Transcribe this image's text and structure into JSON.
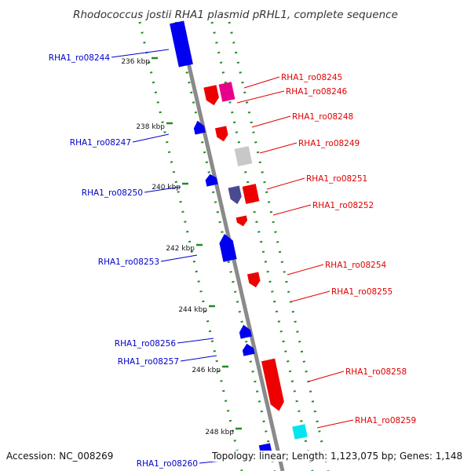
{
  "title": "Rhodococcus jostii RHA1 plasmid pRHL1, complete sequence",
  "accession": "Accession: NC_008269",
  "info": "Topology: linear; Length: 1,123,075 bp; Genes: 1,148",
  "ticks": [
    {
      "label": "236 kbp",
      "kbp": 236
    },
    {
      "label": "238 kbp",
      "kbp": 238
    },
    {
      "label": "240 kbp",
      "kbp": 240
    },
    {
      "label": "242 kbp",
      "kbp": 242
    },
    {
      "label": "244 kbp",
      "kbp": 244
    },
    {
      "label": "246 kbp",
      "kbp": 246
    },
    {
      "label": "248 kbp",
      "kbp": 248
    }
  ],
  "colors": {
    "forward": "#e00000",
    "reverse": "#0000cc",
    "backbone": "#808080",
    "ruler": "#228b22"
  },
  "genes": [
    {
      "name": "RHA1_ro08244",
      "strand": "reverse",
      "color": "#0000ee"
    },
    {
      "name": "RHA1_ro08245",
      "strand": "forward",
      "color": "#e8008a"
    },
    {
      "name": "RHA1_ro08246",
      "strand": "forward",
      "color": "#ee0000"
    },
    {
      "name": "RHA1_ro08247",
      "strand": "reverse",
      "color": "#0000ee"
    },
    {
      "name": "RHA1_ro08248",
      "strand": "forward",
      "color": "#ee0000"
    },
    {
      "name": "RHA1_ro08249",
      "strand": "forward",
      "color": "#c8c8c8"
    },
    {
      "name": "RHA1_ro08250",
      "strand": "reverse",
      "color": "#0000ee"
    },
    {
      "name": "RHA1_ro08251",
      "strand": "forward",
      "color": "#4a4a90"
    },
    {
      "name": "RHA1_ro08252",
      "strand": "forward",
      "color": "#ee0000"
    },
    {
      "name": "RHA1_ro08253",
      "strand": "reverse",
      "color": "#0000ee"
    },
    {
      "name": "RHA1_ro08254",
      "strand": "forward",
      "color": "#ee0000"
    },
    {
      "name": "RHA1_ro08255",
      "strand": "forward",
      "color": "#ee0000"
    },
    {
      "name": "RHA1_ro08256",
      "strand": "reverse",
      "color": "#0000ee"
    },
    {
      "name": "RHA1_ro08257",
      "strand": "reverse",
      "color": "#0000ee"
    },
    {
      "name": "RHA1_ro08258",
      "strand": "forward",
      "color": "#ee0000"
    },
    {
      "name": "RHA1_ro08259",
      "strand": "forward",
      "color": "#00e5ee"
    },
    {
      "name": "RHA1_ro08260",
      "strand": "reverse",
      "color": "#0000ee"
    }
  ]
}
